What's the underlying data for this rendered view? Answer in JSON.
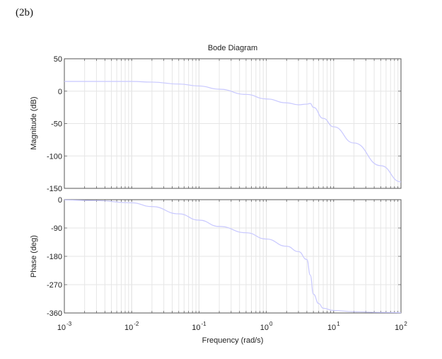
{
  "figure_label": "(2b)",
  "chart_data": {
    "type": "line",
    "title": "Bode Diagram",
    "xlabel": "Frequency  (rad/s)",
    "xscale": "log",
    "xlim": [
      0.001,
      100
    ],
    "x_ticks": [
      {
        "base": "10",
        "exp": "-3"
      },
      {
        "base": "10",
        "exp": "-2"
      },
      {
        "base": "10",
        "exp": "-1"
      },
      {
        "base": "10",
        "exp": "0"
      },
      {
        "base": "10",
        "exp": "1"
      },
      {
        "base": "10",
        "exp": "2"
      }
    ],
    "grid": true,
    "line_color": "#c8c8ff",
    "panels": [
      {
        "name": "magnitude",
        "ylabel": "Magnitude (dB)",
        "ylim": [
          -150,
          50
        ],
        "y_ticks": [
          "50",
          "0",
          "-50",
          "-100",
          "-150"
        ],
        "y_tick_values": [
          50,
          0,
          -50,
          -100,
          -150
        ],
        "series": [
          {
            "name": "Magnitude",
            "x": [
              0.001,
              0.003,
              0.01,
              0.02,
              0.05,
              0.1,
              0.2,
              0.5,
              1,
              2,
              3,
              4,
              4.5,
              5,
              7,
              10,
              20,
              50,
              100
            ],
            "y": [
              15,
              15,
              15,
              14,
              11,
              8,
              3,
              -5,
              -12,
              -18,
              -21,
              -20,
              -19,
              -25,
              -42,
              -55,
              -80,
              -115,
              -140
            ]
          }
        ]
      },
      {
        "name": "phase",
        "ylabel": "Phase (deg)",
        "ylim": [
          -360,
          0
        ],
        "y_ticks": [
          "0",
          "-90",
          "-180",
          "-270",
          "-360"
        ],
        "y_tick_values": [
          0,
          -90,
          -180,
          -270,
          -360
        ],
        "series": [
          {
            "name": "Phase",
            "x": [
              0.001,
              0.003,
              0.01,
              0.02,
              0.05,
              0.1,
              0.2,
              0.5,
              1,
              2,
              3,
              4,
              4.5,
              5,
              6,
              7,
              10,
              20,
              50,
              100
            ],
            "y": [
              -1,
              -3,
              -10,
              -22,
              -45,
              -65,
              -85,
              -105,
              -125,
              -148,
              -165,
              -190,
              -240,
              -300,
              -330,
              -345,
              -352,
              -356,
              -358,
              -359
            ]
          }
        ]
      }
    ]
  }
}
